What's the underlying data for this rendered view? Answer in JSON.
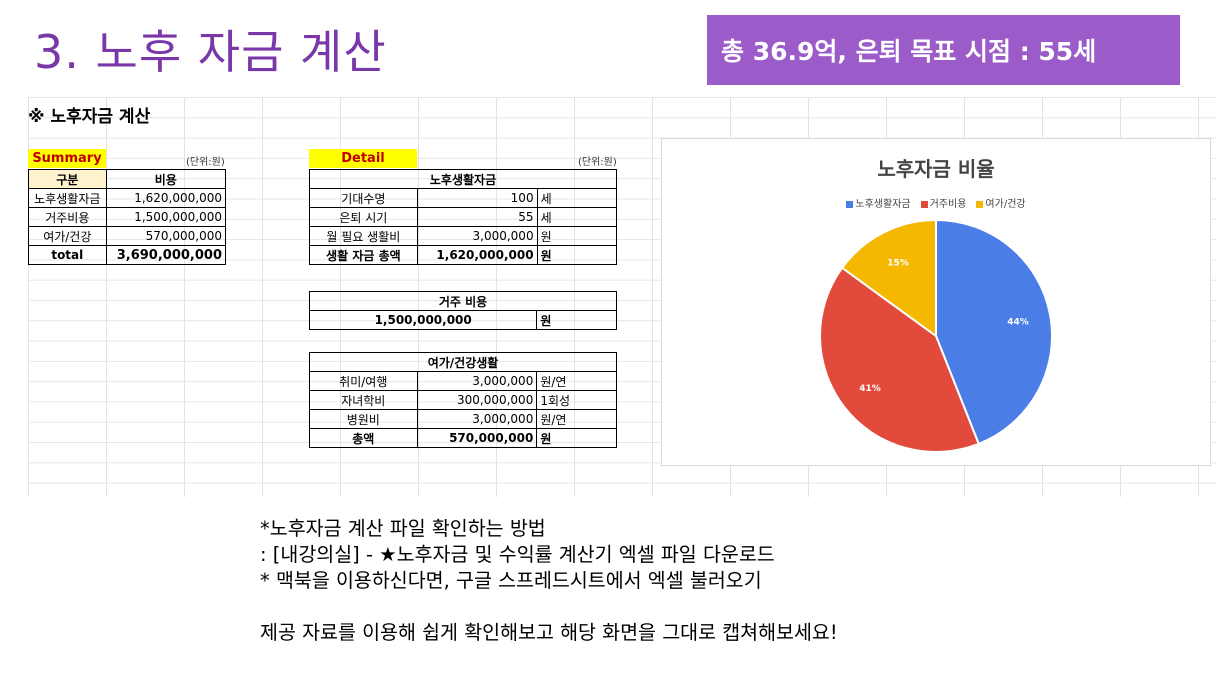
{
  "slide": {
    "title": "3. 노후 자금 계산",
    "banner": "총 36.9억, 은퇴 목표 시점  : 55세"
  },
  "sheet": {
    "heading": "※ 노후자금 계산",
    "summary": {
      "label": "Summary",
      "unit": "(단위:원)",
      "headers": [
        "구분",
        "비용"
      ],
      "rows": [
        [
          "노후생활자금",
          "1,620,000,000"
        ],
        [
          "거주비용",
          "1,500,000,000"
        ],
        [
          "여가/건강",
          "570,000,000"
        ],
        [
          "total",
          "3,690,000,000"
        ]
      ]
    },
    "detail": {
      "label": "Detail",
      "unit": "(단위:원)",
      "living": {
        "title": "노후생활자금",
        "rows": [
          [
            "기대수명",
            "100",
            "세"
          ],
          [
            "은퇴 시기",
            "55",
            "세"
          ],
          [
            "월 필요 생활비",
            "3,000,000",
            "원"
          ],
          [
            "생활 자금 총액",
            "1,620,000,000",
            "원"
          ]
        ]
      },
      "housing": {
        "title": "거주 비용",
        "value": "1,500,000,000",
        "unit": "원"
      },
      "leisure": {
        "title": "여가/건강생활",
        "rows": [
          [
            "취미/여행",
            "3,000,000",
            "원/연"
          ],
          [
            "자녀학비",
            "300,000,000",
            "1회성"
          ],
          [
            "병원비",
            "3,000,000",
            "원/연"
          ],
          [
            "총액",
            "570,000,000",
            "원"
          ]
        ]
      }
    }
  },
  "chart_data": {
    "type": "pie",
    "title": "노후자금 비율",
    "legend_position": "top",
    "series": [
      {
        "name": "노후생활자금",
        "value": 44,
        "label": "44%",
        "color": "#4a7ee6"
      },
      {
        "name": "거주비용",
        "value": 41,
        "label": "41%",
        "color": "#e24a3b"
      },
      {
        "name": "여가/건강",
        "value": 15,
        "label": "15%",
        "color": "#f5b800"
      }
    ]
  },
  "notes": [
    "*노후자금 계산 파일 확인하는 방법",
    ": [내강의실] - ★노후자금 및 수익률 계산기 엑셀 파일 다운로드",
    "* 맥북을 이용하신다면, 구글 스프레드시트에서 엑셀 불러오기",
    "",
    "제공 자료를 이용해 쉽게 확인해보고 해당 화면을 그대로 캡쳐해보세요!"
  ]
}
